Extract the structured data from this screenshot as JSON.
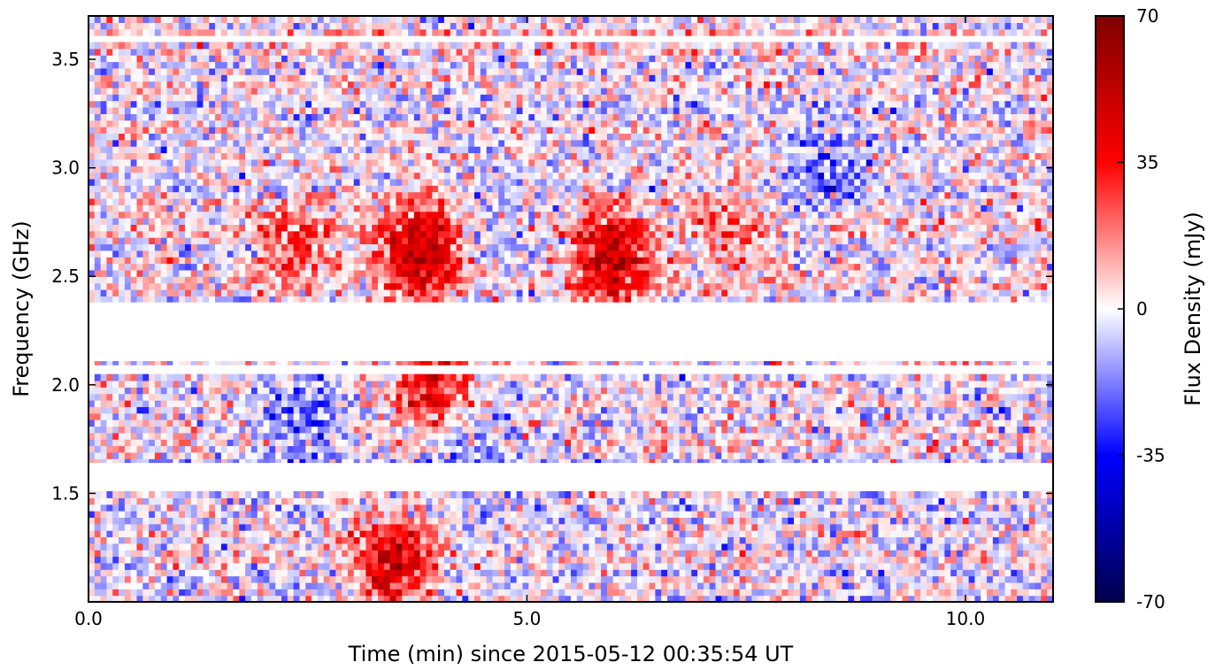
{
  "chart_data": {
    "type": "heatmap",
    "title": "",
    "xlabel": "Time (min) since 2015-05-12 00:35:54 UT",
    "ylabel": "Frequency (GHz)",
    "colorbar_label": "Flux Density (mJy)",
    "xlim": [
      0.0,
      11.0
    ],
    "ylim": [
      1.0,
      3.7
    ],
    "clim": [
      -70,
      70
    ],
    "colormap": "seismic",
    "colormap_stops": [
      "#00004d",
      "#0000ff",
      "#ffffff",
      "#ff0000",
      "#800000"
    ],
    "x_ticks": [
      {
        "value": 0.0,
        "label": "0.0"
      },
      {
        "value": 5.0,
        "label": "5.0"
      },
      {
        "value": 10.0,
        "label": "10.0"
      }
    ],
    "y_ticks": [
      {
        "value": 1.5,
        "label": "1.5"
      },
      {
        "value": 2.0,
        "label": "2.0"
      },
      {
        "value": 2.5,
        "label": "2.5"
      },
      {
        "value": 3.0,
        "label": "3.0"
      },
      {
        "value": 3.5,
        "label": "3.5"
      }
    ],
    "colorbar_ticks": [
      {
        "value": 70,
        "label": "70"
      },
      {
        "value": 35,
        "label": "35"
      },
      {
        "value": 0,
        "label": "0"
      },
      {
        "value": -35,
        "label": "-35"
      },
      {
        "value": -70,
        "label": "-70"
      }
    ],
    "grid": false,
    "time_bins": 160,
    "frequency_bins": 90,
    "background_noise_mJy": 20,
    "masked_frequency_bands_GHz": [
      [
        2.11,
        2.38
      ],
      [
        2.05,
        2.09
      ],
      [
        1.52,
        1.64
      ],
      [
        3.58,
        3.6
      ]
    ],
    "emission_features": [
      {
        "time_min": 3.5,
        "freq_GHz": 1.18,
        "peak_mJy": 50
      },
      {
        "time_min": 3.8,
        "freq_GHz": 2.62,
        "peak_mJy": 55
      },
      {
        "time_min": 3.95,
        "freq_GHz": 1.98,
        "peak_mJy": 45
      },
      {
        "time_min": 5.95,
        "freq_GHz": 2.58,
        "peak_mJy": 55
      },
      {
        "time_min": 2.3,
        "freq_GHz": 2.65,
        "peak_mJy": 25
      },
      {
        "time_min": 7.3,
        "freq_GHz": 2.7,
        "peak_mJy": 20
      },
      {
        "time_min": 8.4,
        "freq_GHz": 3.0,
        "peak_mJy": -22
      },
      {
        "time_min": 2.5,
        "freq_GHz": 1.8,
        "peak_mJy": -20
      },
      {
        "time_min": 4.2,
        "freq_GHz": 1.75,
        "peak_mJy": -22
      },
      {
        "time_min": 4.6,
        "freq_GHz": 2.7,
        "peak_mJy": -12
      }
    ]
  }
}
